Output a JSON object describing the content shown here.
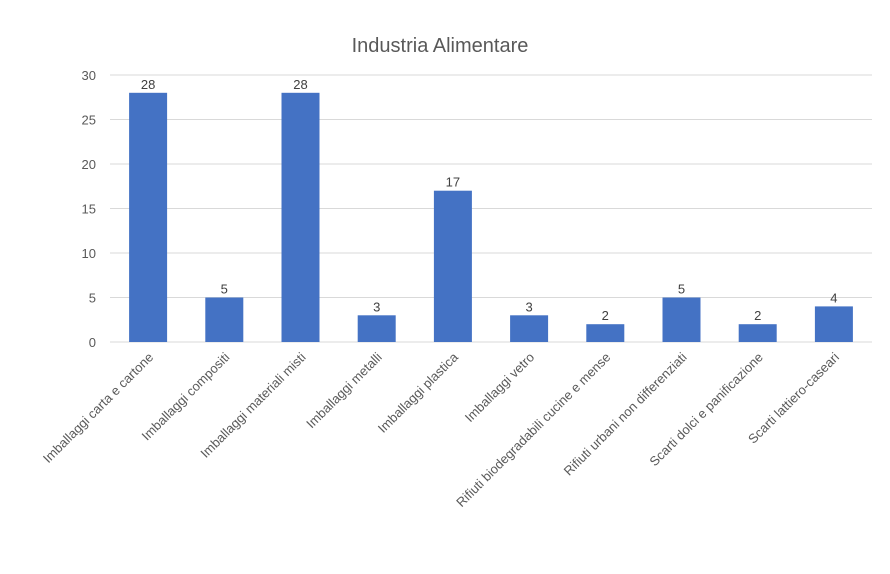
{
  "chart_data": {
    "type": "bar",
    "title": "Industria Alimentare",
    "categories": [
      "Imballaggi carta e cartone",
      "Imballaggi compositi",
      "Imballaggi materiali misti",
      "Imballaggi metalli",
      "Imballaggi plastica",
      "Imballaggi vetro",
      "Rifiuti biodegradabili cucine e mense",
      "Rifiuti urbani non differenziati",
      "Scarti dolci e panificazione",
      "Scarti lattiero-caseari"
    ],
    "values": [
      28,
      5,
      28,
      3,
      17,
      3,
      2,
      5,
      2,
      4
    ],
    "ylim": [
      0,
      30
    ],
    "yticks": [
      0,
      5,
      10,
      15,
      20,
      25,
      30
    ],
    "xlabel": "",
    "ylabel": "",
    "grid": true,
    "legend": "none",
    "colors": {
      "bar": "#4472c4",
      "grid": "#d9d9d9",
      "text": "#595959"
    }
  }
}
